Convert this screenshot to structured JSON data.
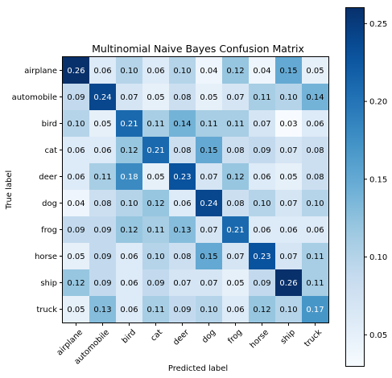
{
  "chart_data": {
    "type": "heatmap",
    "title": "Multinomial Naive Bayes Confusion Matrix",
    "xlabel": "Predicted label",
    "ylabel": "True label",
    "x_categories": [
      "airplane",
      "automobile",
      "bird",
      "cat",
      "deer",
      "dog",
      "frog",
      "horse",
      "ship",
      "truck"
    ],
    "y_categories": [
      "airplane",
      "automobile",
      "bird",
      "cat",
      "deer",
      "dog",
      "frog",
      "horse",
      "ship",
      "truck"
    ],
    "values": [
      [
        0.26,
        0.06,
        0.1,
        0.06,
        0.1,
        0.04,
        0.12,
        0.04,
        0.15,
        0.05
      ],
      [
        0.09,
        0.24,
        0.07,
        0.05,
        0.08,
        0.05,
        0.07,
        0.11,
        0.1,
        0.14
      ],
      [
        0.1,
        0.05,
        0.21,
        0.11,
        0.14,
        0.11,
        0.11,
        0.07,
        0.03,
        0.06
      ],
      [
        0.06,
        0.06,
        0.12,
        0.21,
        0.08,
        0.15,
        0.08,
        0.09,
        0.07,
        0.08
      ],
      [
        0.06,
        0.11,
        0.18,
        0.05,
        0.23,
        0.07,
        0.12,
        0.06,
        0.05,
        0.08
      ],
      [
        0.04,
        0.08,
        0.1,
        0.12,
        0.06,
        0.24,
        0.08,
        0.1,
        0.07,
        0.1
      ],
      [
        0.09,
        0.09,
        0.12,
        0.11,
        0.13,
        0.07,
        0.21,
        0.06,
        0.06,
        0.06
      ],
      [
        0.05,
        0.09,
        0.06,
        0.1,
        0.08,
        0.15,
        0.07,
        0.23,
        0.07,
        0.11
      ],
      [
        0.12,
        0.09,
        0.06,
        0.09,
        0.07,
        0.07,
        0.05,
        0.09,
        0.26,
        0.11
      ],
      [
        0.05,
        0.13,
        0.06,
        0.11,
        0.09,
        0.1,
        0.06,
        0.12,
        0.1,
        0.17
      ]
    ],
    "colormap": "Blues",
    "value_range": [
      0.03,
      0.26
    ],
    "colorbar_ticks": [
      0.05,
      0.1,
      0.15,
      0.2,
      0.25
    ],
    "colorbar_tick_labels": [
      "0.05",
      "0.10",
      "0.15",
      "0.20",
      "0.25"
    ],
    "text_color_dark": "#000000",
    "text_color_light": "#ffffff"
  }
}
